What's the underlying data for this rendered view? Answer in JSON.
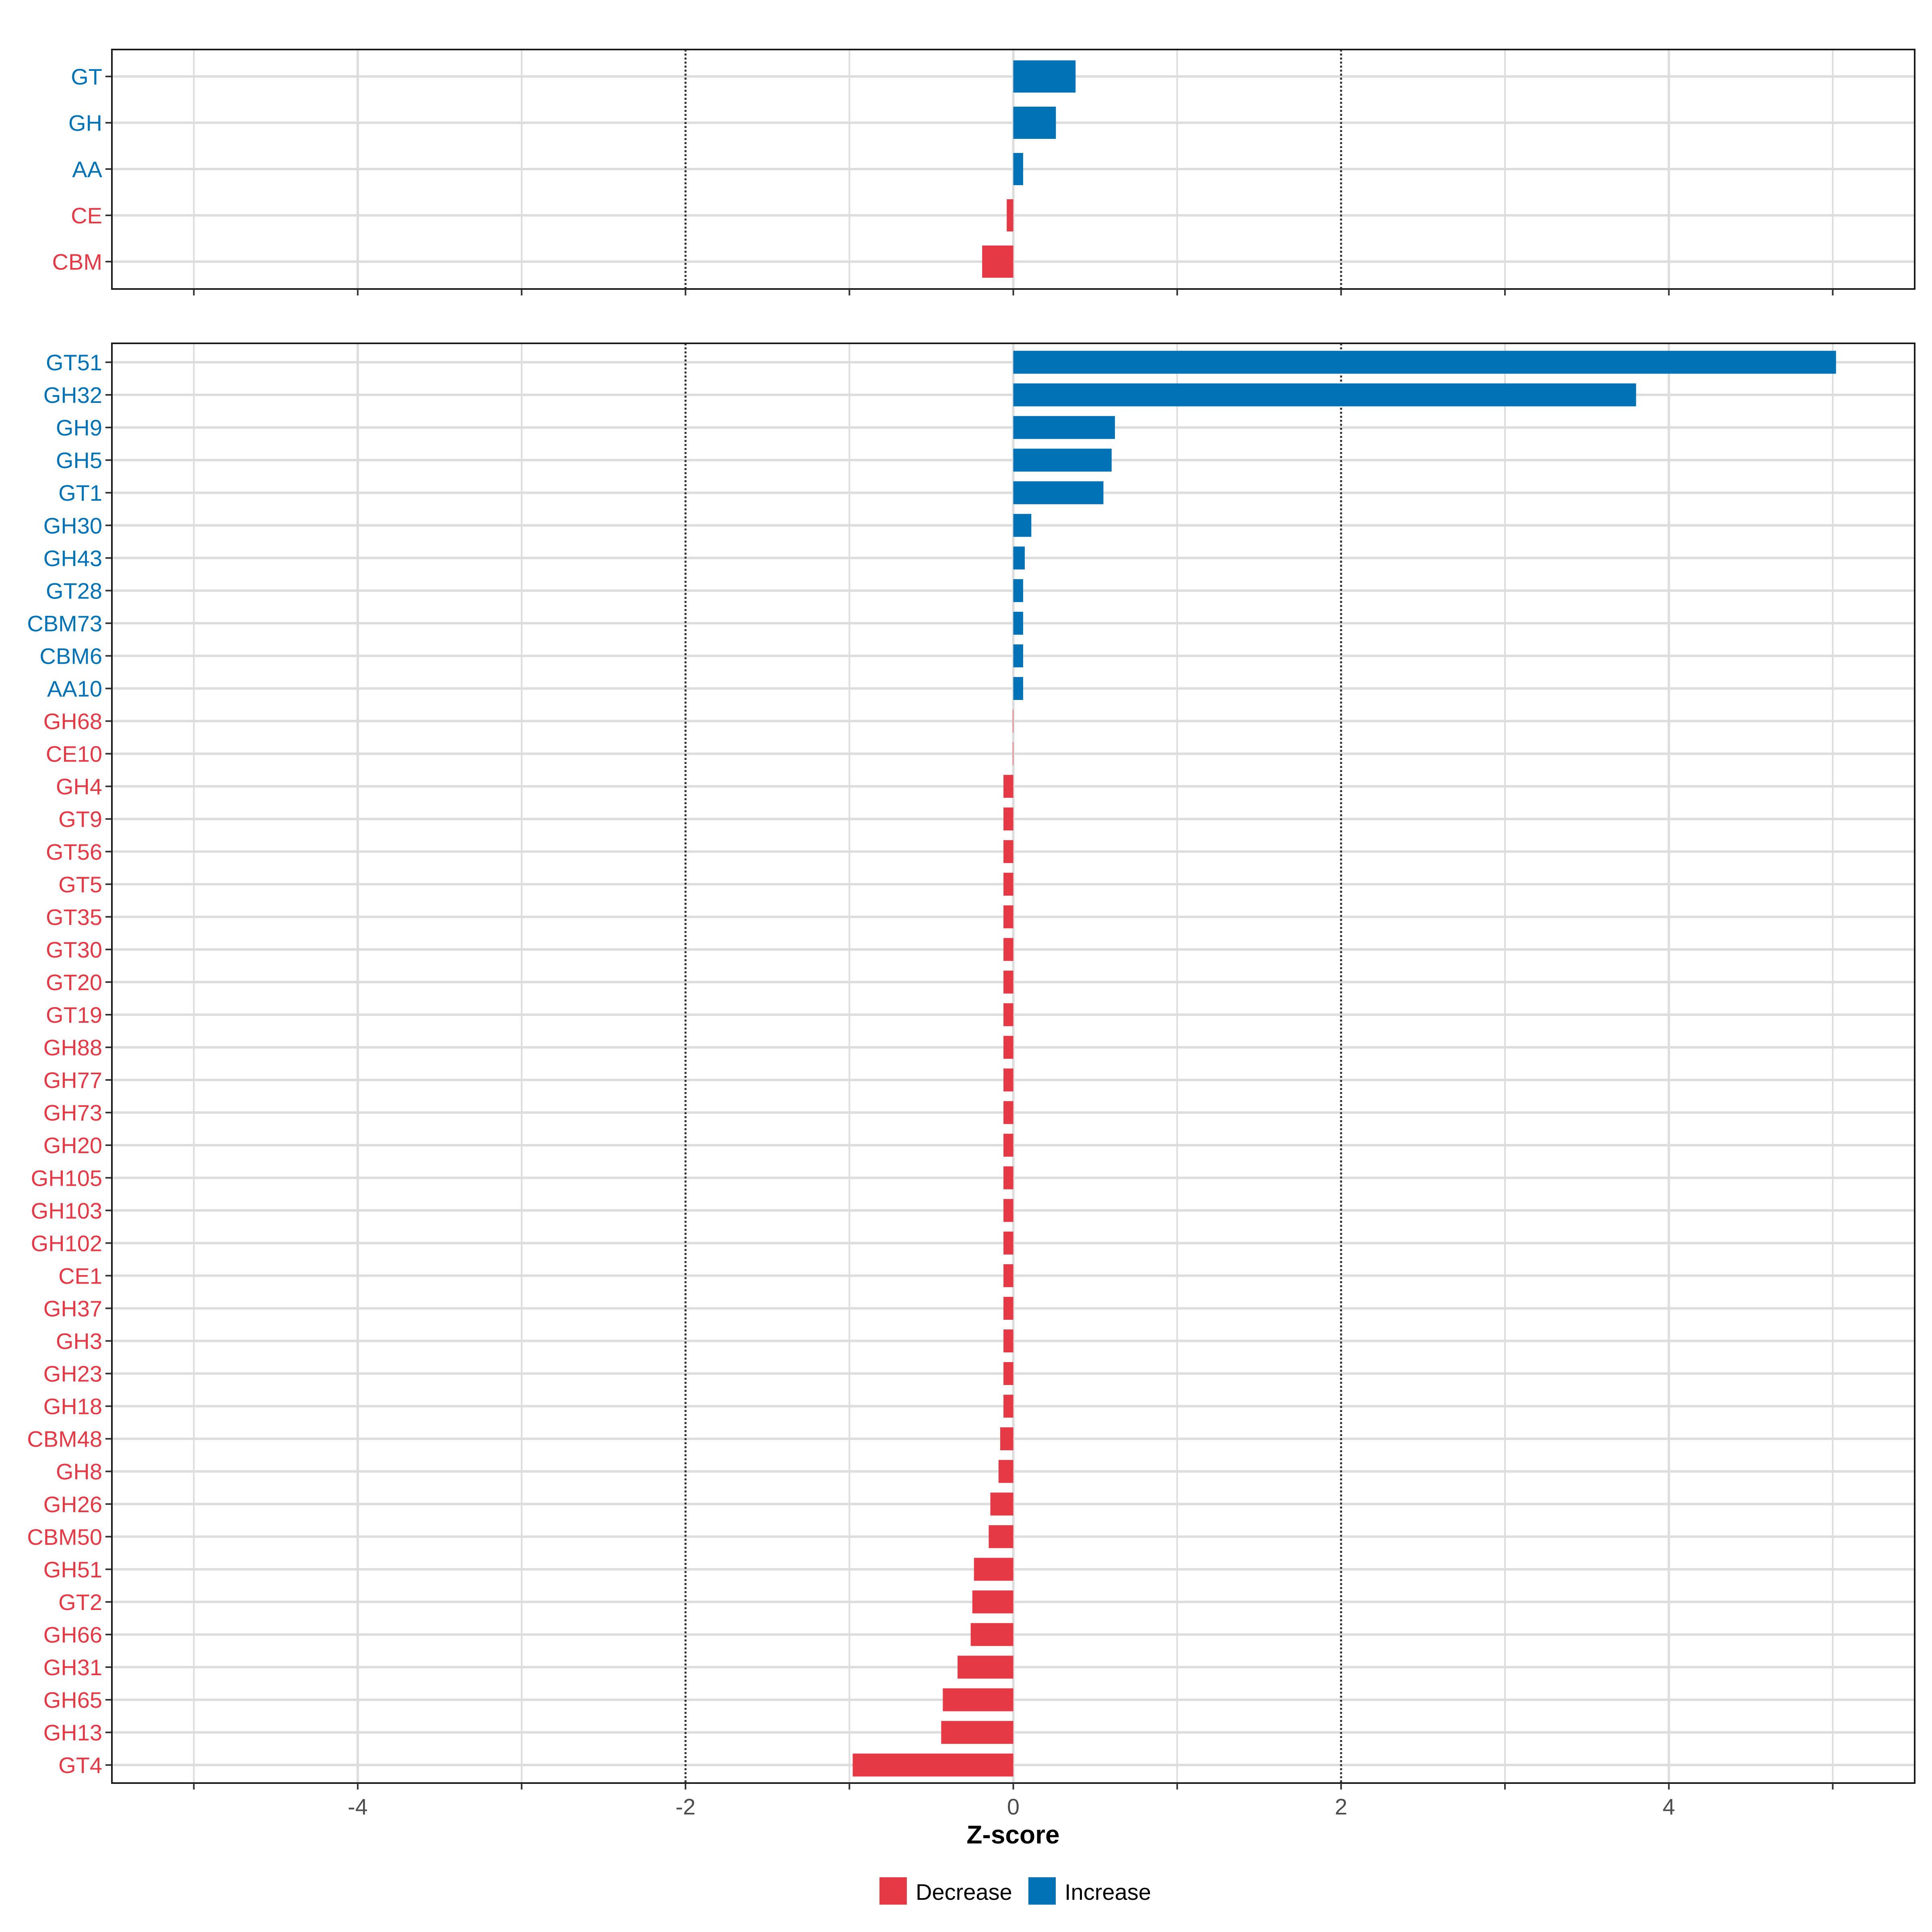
{
  "chart_data": [
    {
      "panel": "top",
      "type": "bar",
      "orientation": "horizontal",
      "xlim": [
        -5.5,
        5.5
      ],
      "xticks": [
        "-4",
        "-2",
        "0",
        "2",
        "4"
      ],
      "xtick_values": [
        -4,
        -2,
        0,
        2,
        4
      ],
      "reference_lines": [
        -2,
        2
      ],
      "categories": [
        "GT",
        "GH",
        "AA",
        "CE",
        "CBM"
      ],
      "values": [
        0.38,
        0.26,
        0.06,
        -0.04,
        -0.19
      ],
      "direction": [
        "Increase",
        "Increase",
        "Increase",
        "Decrease",
        "Decrease"
      ]
    },
    {
      "panel": "bottom",
      "type": "bar",
      "orientation": "horizontal",
      "xlabel": "Z-score",
      "xlim": [
        -5.5,
        5.5
      ],
      "xticks": [
        "-4",
        "-2",
        "0",
        "2",
        "4"
      ],
      "xtick_values": [
        -4,
        -2,
        0,
        2,
        4
      ],
      "reference_lines": [
        -2,
        2
      ],
      "categories": [
        "GT51",
        "GH32",
        "GH9",
        "GH5",
        "GT1",
        "GH30",
        "GH43",
        "GT28",
        "CBM73",
        "CBM6",
        "AA10",
        "GH68",
        "CE10",
        "GH4",
        "GT9",
        "GT56",
        "GT5",
        "GT35",
        "GT30",
        "GT20",
        "GT19",
        "GH88",
        "GH77",
        "GH73",
        "GH20",
        "GH105",
        "GH103",
        "GH102",
        "CE1",
        "GH37",
        "GH3",
        "GH23",
        "GH18",
        "CBM48",
        "GH8",
        "GH26",
        "CBM50",
        "GH51",
        "GT2",
        "GH66",
        "GH31",
        "GH65",
        "GH13",
        "GT4"
      ],
      "values": [
        5.02,
        3.8,
        0.62,
        0.6,
        0.55,
        0.11,
        0.07,
        0.06,
        0.06,
        0.06,
        0.06,
        -0.003,
        -0.003,
        -0.06,
        -0.06,
        -0.06,
        -0.06,
        -0.06,
        -0.06,
        -0.06,
        -0.06,
        -0.06,
        -0.06,
        -0.06,
        -0.06,
        -0.06,
        -0.06,
        -0.06,
        -0.06,
        -0.06,
        -0.06,
        -0.06,
        -0.06,
        -0.08,
        -0.09,
        -0.14,
        -0.15,
        -0.24,
        -0.25,
        -0.26,
        -0.34,
        -0.43,
        -0.44,
        -0.98
      ],
      "direction": [
        "Increase",
        "Increase",
        "Increase",
        "Increase",
        "Increase",
        "Increase",
        "Increase",
        "Increase",
        "Increase",
        "Increase",
        "Increase",
        "Decrease",
        "Decrease",
        "Decrease",
        "Decrease",
        "Decrease",
        "Decrease",
        "Decrease",
        "Decrease",
        "Decrease",
        "Decrease",
        "Decrease",
        "Decrease",
        "Decrease",
        "Decrease",
        "Decrease",
        "Decrease",
        "Decrease",
        "Decrease",
        "Decrease",
        "Decrease",
        "Decrease",
        "Decrease",
        "Decrease",
        "Decrease",
        "Decrease",
        "Decrease",
        "Decrease",
        "Decrease",
        "Decrease",
        "Decrease",
        "Decrease",
        "Decrease",
        "Decrease"
      ]
    }
  ],
  "legend": {
    "items": [
      {
        "label": "Decrease",
        "color": "#E63946"
      },
      {
        "label": "Increase",
        "color": "#0072B5"
      }
    ]
  },
  "colors": {
    "Increase": "#0072B5",
    "Decrease": "#E63946",
    "grid": "#DDDDDD",
    "reference_line": "#333333",
    "tick_text": "#4D4D4D"
  }
}
